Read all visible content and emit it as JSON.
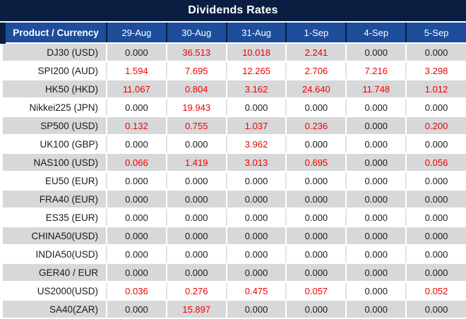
{
  "title": "Dividends Rates",
  "colors": {
    "title_bg": "#0a1e42",
    "header_bg": "#1d4d9b",
    "row_alt_bg": "#d6d8da",
    "row_bg": "#ffffff",
    "white_row_divider": "#dfe4ec",
    "value_nonzero": "#f00000",
    "value_zero": "#1a1a1a"
  },
  "chart_data": {
    "type": "table",
    "title": "Dividends Rates",
    "columns": [
      "Product / Currency",
      "29-Aug",
      "30-Aug",
      "31-Aug",
      "1-Sep",
      "4-Sep",
      "5-Sep"
    ],
    "rows": [
      {
        "product": "DJ30 (USD)",
        "values": [
          "0.000",
          "36.513",
          "10.018",
          "2.241",
          "0.000",
          "0.000"
        ]
      },
      {
        "product": "SPI200 (AUD)",
        "values": [
          "1.594",
          "7.695",
          "12.265",
          "2.706",
          "7.216",
          "3.298"
        ]
      },
      {
        "product": "HK50 (HKD)",
        "values": [
          "11.067",
          "0.804",
          "3.162",
          "24.640",
          "11.748",
          "1.012"
        ]
      },
      {
        "product": "Nikkei225 (JPN)",
        "values": [
          "0.000",
          "19.943",
          "0.000",
          "0.000",
          "0.000",
          "0.000"
        ]
      },
      {
        "product": "SP500 (USD)",
        "values": [
          "0.132",
          "0.755",
          "1.037",
          "0.236",
          "0.000",
          "0.200"
        ]
      },
      {
        "product": "UK100 (GBP)",
        "values": [
          "0.000",
          "0.000",
          "3.962",
          "0.000",
          "0.000",
          "0.000"
        ]
      },
      {
        "product": "NAS100 (USD)",
        "values": [
          "0.066",
          "1.419",
          "3.013",
          "0.695",
          "0.000",
          "0.056"
        ]
      },
      {
        "product": "EU50 (EUR)",
        "values": [
          "0.000",
          "0.000",
          "0.000",
          "0.000",
          "0.000",
          "0.000"
        ]
      },
      {
        "product": "FRA40 (EUR)",
        "values": [
          "0.000",
          "0.000",
          "0.000",
          "0.000",
          "0.000",
          "0.000"
        ]
      },
      {
        "product": "ES35 (EUR)",
        "values": [
          "0.000",
          "0.000",
          "0.000",
          "0.000",
          "0.000",
          "0.000"
        ]
      },
      {
        "product": "CHINA50(USD)",
        "values": [
          "0.000",
          "0.000",
          "0.000",
          "0.000",
          "0.000",
          "0.000"
        ]
      },
      {
        "product": "INDIA50(USD)",
        "values": [
          "0.000",
          "0.000",
          "0.000",
          "0.000",
          "0.000",
          "0.000"
        ]
      },
      {
        "product": "GER40 / EUR",
        "values": [
          "0.000",
          "0.000",
          "0.000",
          "0.000",
          "0.000",
          "0.000"
        ]
      },
      {
        "product": "US2000(USD)",
        "values": [
          "0.036",
          "0.276",
          "0.475",
          "0.057",
          "0.000",
          "0.052"
        ]
      },
      {
        "product": "SA40(ZAR)",
        "values": [
          "0.000",
          "15.897",
          "0.000",
          "0.000",
          "0.000",
          "0.000"
        ]
      }
    ]
  }
}
